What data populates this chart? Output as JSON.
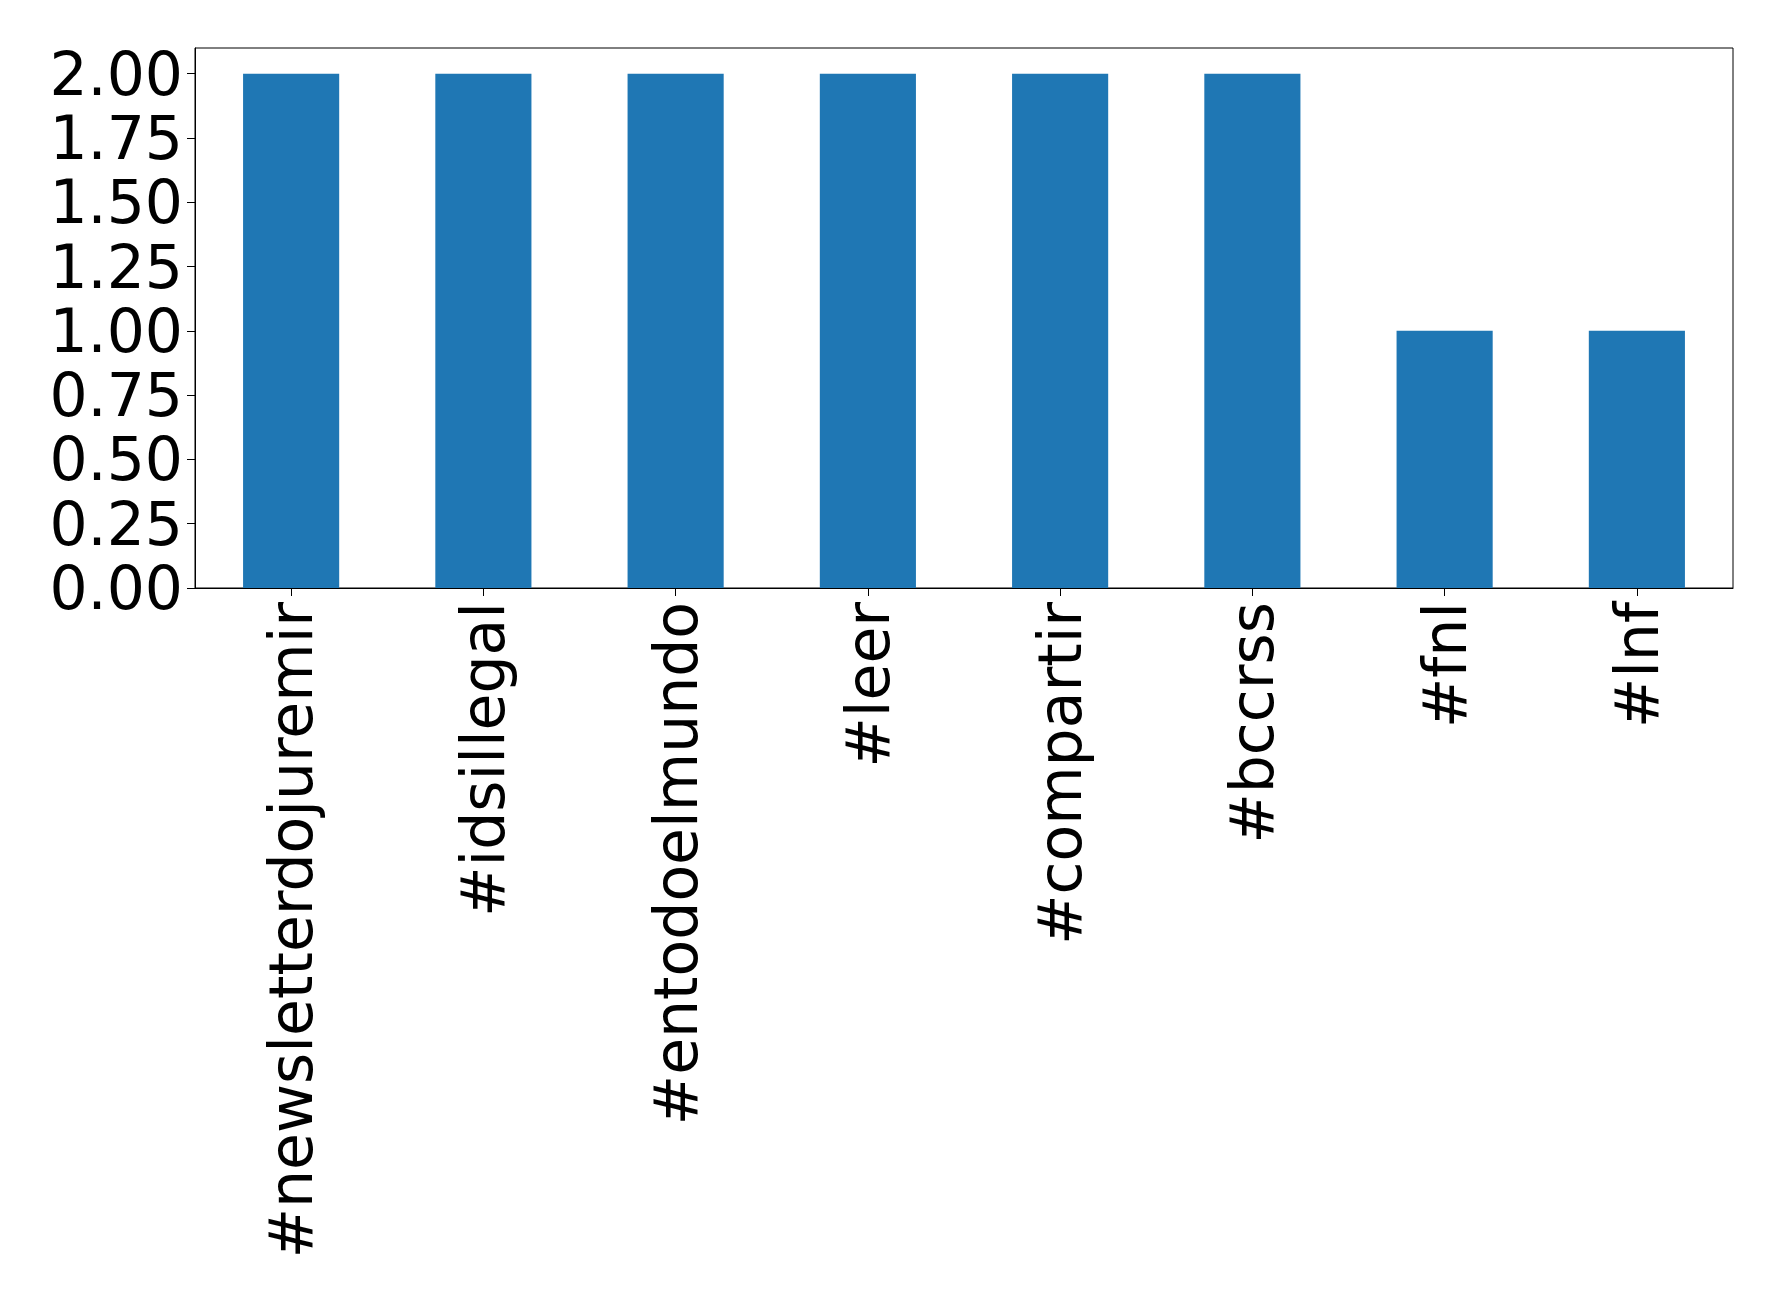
{
  "chart_data": {
    "type": "bar",
    "categories": [
      "#newsletterdojuremir",
      "#idsillegal",
      "#entodoelmundo",
      "#leer",
      "#compartir",
      "#bccrss",
      "#fnl",
      "#lnf"
    ],
    "values": [
      2,
      2,
      2,
      2,
      2,
      2,
      1,
      1
    ],
    "color": "#1f77b4",
    "ylim": [
      0,
      2.1
    ],
    "yticks": [
      {
        "value": 0,
        "label": "0.00"
      },
      {
        "value": 0.25,
        "label": "0.25"
      },
      {
        "value": 0.5,
        "label": "0.50"
      },
      {
        "value": 0.75,
        "label": "0.75"
      },
      {
        "value": 1,
        "label": "1.00"
      },
      {
        "value": 1.25,
        "label": "1.25"
      },
      {
        "value": 1.5,
        "label": "1.50"
      },
      {
        "value": 1.75,
        "label": "1.75"
      },
      {
        "value": 2,
        "label": "2.00"
      }
    ],
    "grid": false
  }
}
